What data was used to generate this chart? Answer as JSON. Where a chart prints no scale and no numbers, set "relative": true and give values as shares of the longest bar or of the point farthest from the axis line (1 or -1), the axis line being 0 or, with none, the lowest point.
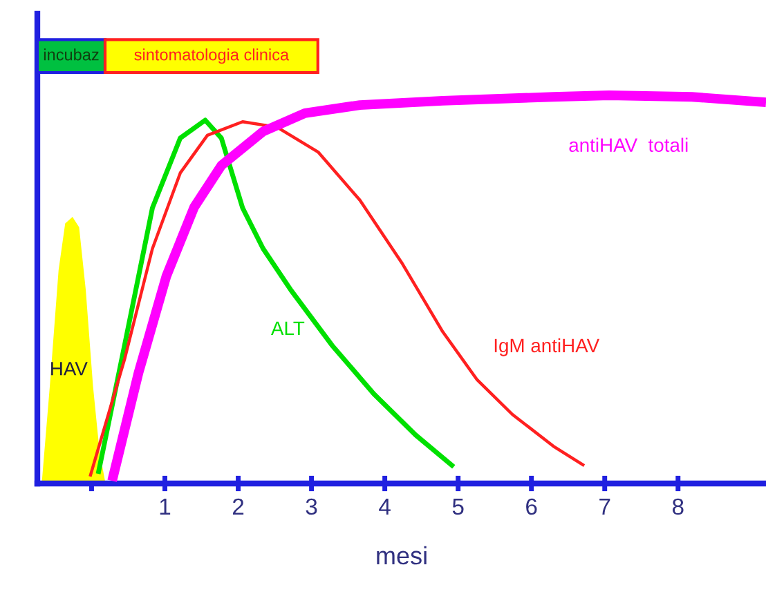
{
  "chart_data": {
    "type": "line",
    "relative": true,
    "xlabel": "mesi",
    "xlim": [
      -0.74,
      9.2
    ],
    "xticks": [
      {
        "value": 0,
        "label": null
      },
      1,
      2,
      3,
      4,
      5,
      6,
      7,
      8
    ],
    "series": [
      {
        "type": "area",
        "name": "HAV",
        "color": "#ffff00",
        "x": [
          -0.68,
          -0.57,
          -0.45,
          -0.36,
          -0.26,
          -0.17,
          -0.08,
          0.02,
          0.11,
          0.19
        ],
        "values": [
          0,
          0.25,
          0.55,
          0.67,
          0.687,
          0.66,
          0.5,
          0.25,
          0.08,
          0
        ]
      },
      {
        "name": "ALT",
        "color": "#00e000",
        "x": [
          0.09,
          0.45,
          0.83,
          1.21,
          1.55,
          1.77,
          2.06,
          2.34,
          2.72,
          3.28,
          3.85,
          4.42,
          4.94
        ],
        "values": [
          0.025,
          0.356,
          0.71,
          0.89,
          0.936,
          0.89,
          0.71,
          0.605,
          0.498,
          0.356,
          0.231,
          0.125,
          0.043
        ]
      },
      {
        "name": "IgM antiHAV",
        "color": "#ff2020",
        "x": [
          -0.02,
          0.45,
          0.83,
          1.21,
          1.58,
          2.06,
          2.53,
          3.09,
          3.66,
          4.23,
          4.79,
          5.26,
          5.74,
          6.3,
          6.72
        ],
        "values": [
          0.018,
          0.32,
          0.605,
          0.8,
          0.897,
          0.932,
          0.918,
          0.854,
          0.73,
          0.569,
          0.391,
          0.267,
          0.178,
          0.096,
          0.046
        ]
      },
      {
        "name": "antiHAV  totali",
        "color": "#ff00ff",
        "x": [
          0.28,
          0.64,
          1.02,
          1.4,
          1.77,
          2.34,
          2.91,
          3.66,
          4.79,
          6.3,
          7.06,
          8.19,
          9.2
        ],
        "values": [
          0.007,
          0.285,
          0.534,
          0.712,
          0.819,
          0.907,
          0.954,
          0.975,
          0.986,
          0.996,
          1,
          0.996,
          0.982
        ]
      }
    ],
    "annotations": [
      "incubaz",
      "sintomatologia clinica"
    ]
  }
}
